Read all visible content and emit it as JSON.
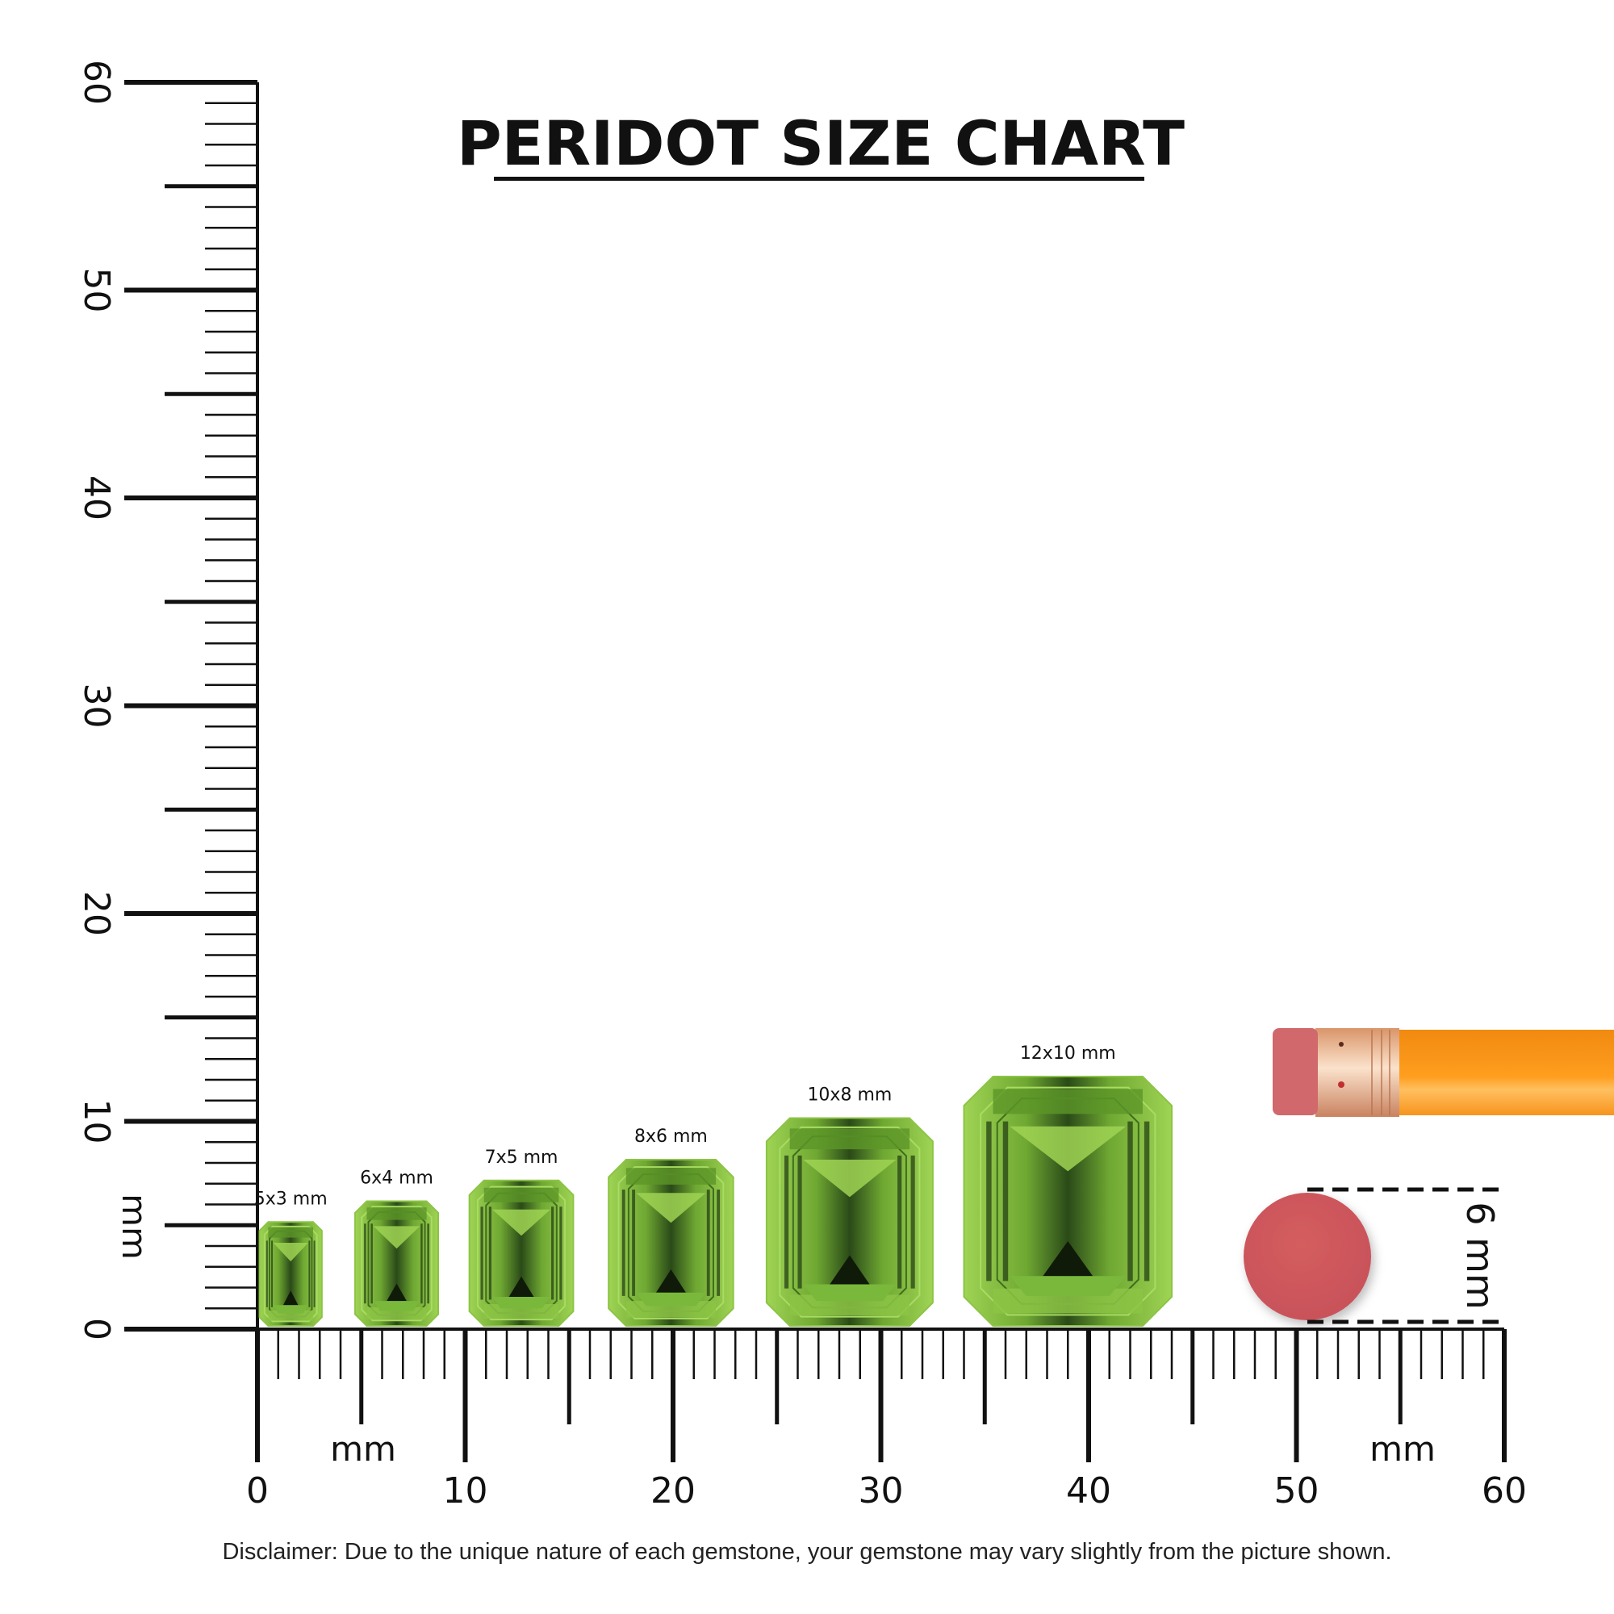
{
  "title": "PERIDOT SIZE CHART",
  "ruler": {
    "unit_label": "mm",
    "range_mm": [
      0,
      60
    ],
    "major_labels": [
      "0",
      "10",
      "20",
      "30",
      "40",
      "50",
      "60"
    ]
  },
  "gems": [
    {
      "label": "5x3 mm",
      "length_mm": 5,
      "width_mm": 3,
      "x_mm": 0.1
    },
    {
      "label": "6x4 mm",
      "length_mm": 6,
      "width_mm": 4,
      "x_mm": 4.7
    },
    {
      "label": "7x5 mm",
      "length_mm": 7,
      "width_mm": 5,
      "x_mm": 10.2
    },
    {
      "label": "8x6 mm",
      "length_mm": 8,
      "width_mm": 6,
      "x_mm": 16.9
    },
    {
      "label": "10x8 mm",
      "length_mm": 10,
      "width_mm": 8,
      "x_mm": 24.5
    },
    {
      "label": "12x10 mm",
      "length_mm": 12,
      "width_mm": 10,
      "x_mm": 34.0
    }
  ],
  "reference": {
    "eraser_label": "6 mm",
    "eraser_diameter_mm": 6
  },
  "colors": {
    "gem_light": "#9fd454",
    "gem_mid": "#6fa832",
    "gem_dark": "#1f3a12",
    "eraser": "#d05a5a",
    "pencil": "#f7941d",
    "ferrule": "#e8b590"
  },
  "disclaimer": "Disclaimer: Due to the unique nature of each gemstone, your gemstone may vary slightly from the picture shown."
}
